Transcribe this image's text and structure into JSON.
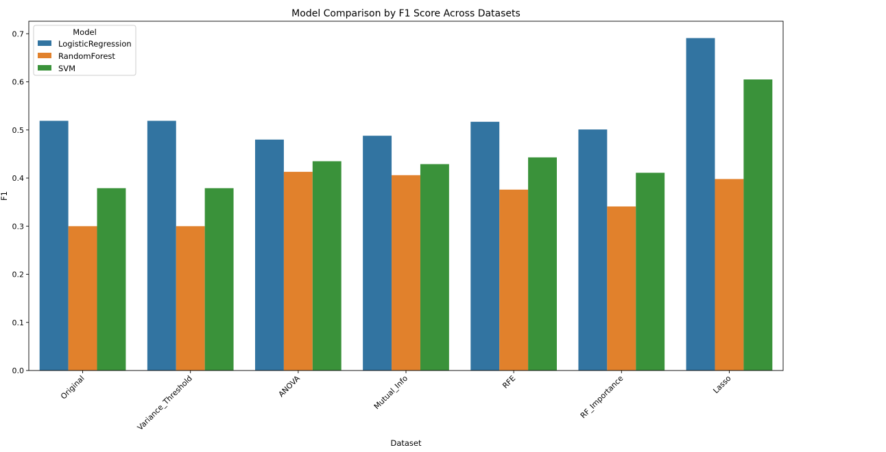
{
  "chart_data": {
    "type": "bar",
    "title": "Model Comparison by F1 Score Across Datasets",
    "xlabel": "Dataset",
    "ylabel": "F1",
    "categories": [
      "Original",
      "Variance_Threshold",
      "ANOVA",
      "Mutual_Info",
      "RFE",
      "RF_Importance",
      "Lasso"
    ],
    "series": [
      {
        "name": "LogisticRegression",
        "color": "#3274a1",
        "values": [
          0.519,
          0.519,
          0.48,
          0.488,
          0.517,
          0.501,
          0.691
        ]
      },
      {
        "name": "RandomForest",
        "color": "#e1812c",
        "values": [
          0.3,
          0.3,
          0.413,
          0.406,
          0.376,
          0.341,
          0.398
        ]
      },
      {
        "name": "SVM",
        "color": "#3a923a",
        "values": [
          0.379,
          0.379,
          0.435,
          0.429,
          0.443,
          0.411,
          0.605
        ]
      }
    ],
    "ylim": [
      0,
      0.726
    ],
    "yticks": [
      {
        "value": 0.0,
        "label": "0.0"
      },
      {
        "value": 0.1,
        "label": "0.1"
      },
      {
        "value": 0.2,
        "label": "0.2"
      },
      {
        "value": 0.3,
        "label": "0.3"
      },
      {
        "value": 0.4,
        "label": "0.4"
      },
      {
        "value": 0.5,
        "label": "0.5"
      },
      {
        "value": 0.6,
        "label": "0.6"
      },
      {
        "value": 0.7,
        "label": "0.7"
      }
    ],
    "grid": false,
    "legend": {
      "title": "Model",
      "placement": "top-left"
    },
    "xtick_rotation": -45
  }
}
